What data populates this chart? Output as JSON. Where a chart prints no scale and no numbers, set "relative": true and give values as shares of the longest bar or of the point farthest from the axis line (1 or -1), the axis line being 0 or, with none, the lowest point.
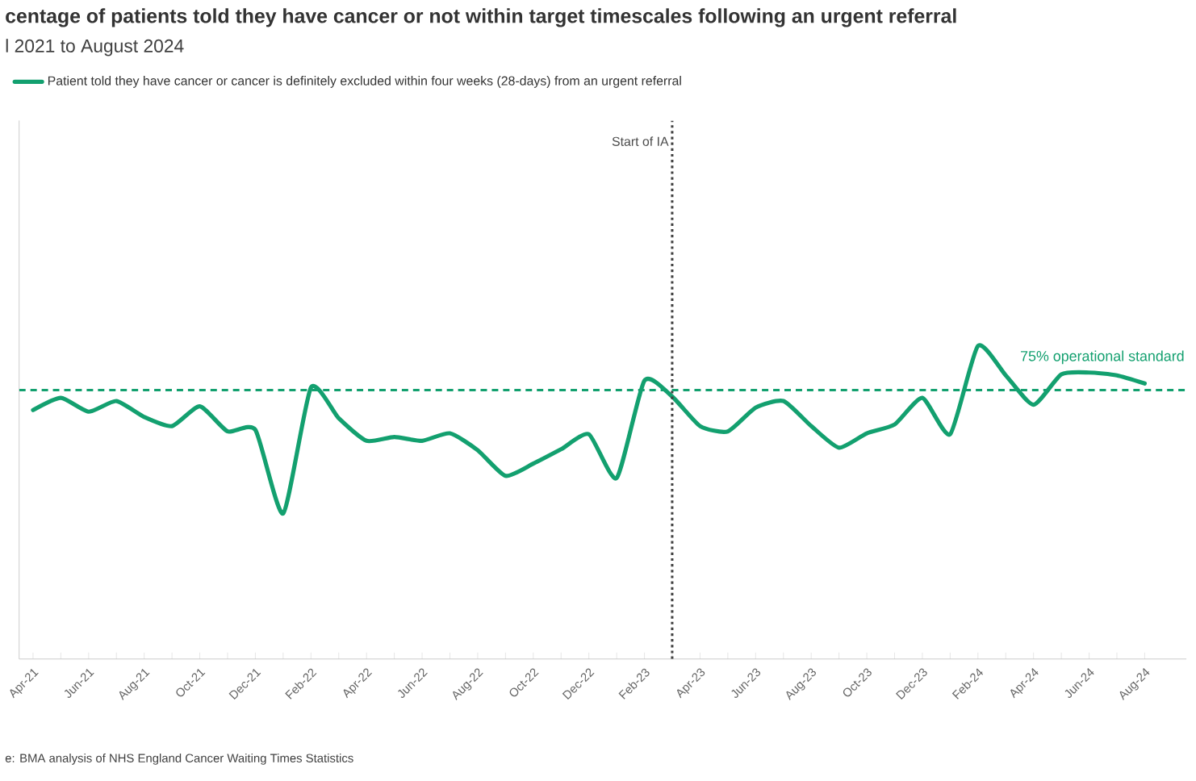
{
  "chart_data": {
    "type": "line",
    "title": "centage of patients told they have cancer or not within target timescales following an urgent referral",
    "subtitle": "l 2021 to August 2024",
    "relative": true,
    "legend": "top left",
    "line_style": "solid",
    "marker": "none",
    "x": [
      "2021-04",
      "2021-05",
      "2021-06",
      "2021-07",
      "2021-08",
      "2021-09",
      "2021-10",
      "2021-11",
      "2021-12",
      "2022-01",
      "2022-02",
      "2022-03",
      "2022-04",
      "2022-05",
      "2022-06",
      "2022-07",
      "2022-08",
      "2022-09",
      "2022-10",
      "2022-11",
      "2022-12",
      "2023-01",
      "2023-02",
      "2023-03",
      "2023-04",
      "2023-05",
      "2023-06",
      "2023-07",
      "2023-08",
      "2023-09",
      "2023-10",
      "2023-11",
      "2023-12",
      "2024-01",
      "2024-02",
      "2024-03",
      "2024-04",
      "2024-05",
      "2024-06",
      "2024-07",
      "2024-08"
    ],
    "xlim": [
      "2021-03-16",
      "2024-09-16"
    ],
    "xticks": [
      {
        "value": "2021-04",
        "label": "Apr-21"
      },
      {
        "value": "2021-05",
        "label": null
      },
      {
        "value": "2021-06",
        "label": "Jun-21"
      },
      {
        "value": "2021-07",
        "label": null
      },
      {
        "value": "2021-08",
        "label": "Aug-21"
      },
      {
        "value": "2021-09",
        "label": null
      },
      {
        "value": "2021-10",
        "label": "Oct-21"
      },
      {
        "value": "2021-11",
        "label": null
      },
      {
        "value": "2021-12",
        "label": "Dec-21"
      },
      {
        "value": "2022-01",
        "label": null
      },
      {
        "value": "2022-02",
        "label": "Feb-22"
      },
      {
        "value": "2022-03",
        "label": null
      },
      {
        "value": "2022-04",
        "label": "Apr-22"
      },
      {
        "value": "2022-05",
        "label": null
      },
      {
        "value": "2022-06",
        "label": "Jun-22"
      },
      {
        "value": "2022-07",
        "label": null
      },
      {
        "value": "2022-08",
        "label": "Aug-22"
      },
      {
        "value": "2022-09",
        "label": null
      },
      {
        "value": "2022-10",
        "label": "Oct-22"
      },
      {
        "value": "2022-11",
        "label": null
      },
      {
        "value": "2022-12",
        "label": "Dec-22"
      },
      {
        "value": "2023-01",
        "label": null
      },
      {
        "value": "2023-02",
        "label": "Feb-23"
      },
      {
        "value": "2023-03",
        "label": null
      },
      {
        "value": "2023-04",
        "label": "Apr-23"
      },
      {
        "value": "2023-05",
        "label": null
      },
      {
        "value": "2023-06",
        "label": "Jun-23"
      },
      {
        "value": "2023-07",
        "label": null
      },
      {
        "value": "2023-08",
        "label": "Aug-23"
      },
      {
        "value": "2023-09",
        "label": null
      },
      {
        "value": "2023-10",
        "label": "Oct-23"
      },
      {
        "value": "2023-11",
        "label": null
      },
      {
        "value": "2023-12",
        "label": "Dec-23"
      },
      {
        "value": "2024-01",
        "label": null
      },
      {
        "value": "2024-02",
        "label": "Feb-24"
      },
      {
        "value": "2024-03",
        "label": null
      },
      {
        "value": "2024-04",
        "label": "Apr-24"
      },
      {
        "value": "2024-05",
        "label": null
      },
      {
        "value": "2024-06",
        "label": "Jun-24"
      },
      {
        "value": "2024-07",
        "label": null
      },
      {
        "value": "2024-08",
        "label": "Aug-24"
      }
    ],
    "series": [
      {
        "name": "Patient told they have cancer or cancer is definitely excluded within four weeks (28-days) from an urgent referral",
        "color": "#13a06f",
        "values": [
          0.795,
          0.834,
          0.79,
          0.824,
          0.773,
          0.744,
          0.807,
          0.727,
          0.732,
          0.465,
          0.867,
          0.769,
          0.697,
          0.709,
          0.697,
          0.721,
          0.667,
          0.585,
          0.624,
          0.67,
          0.718,
          0.578,
          0.889,
          0.838,
          0.744,
          0.727,
          0.803,
          0.824,
          0.744,
          0.675,
          0.721,
          0.749,
          0.834,
          0.718,
          1,
          0.906,
          0.812,
          0.909,
          0.915,
          0.906,
          0.88
        ]
      }
    ],
    "ref_lines": [
      {
        "axis": "x",
        "value": "2023-03",
        "label": "Start of IA",
        "color": "#404040",
        "line_style": "dotted"
      },
      {
        "axis": "y",
        "value": 0.859,
        "label": "75% operational standard",
        "color": "#13a06f",
        "line_style": "dashed"
      }
    ],
    "annotations": [
      "e: BMA analysis of NHS England Cancer Waiting Times Statistics"
    ]
  }
}
